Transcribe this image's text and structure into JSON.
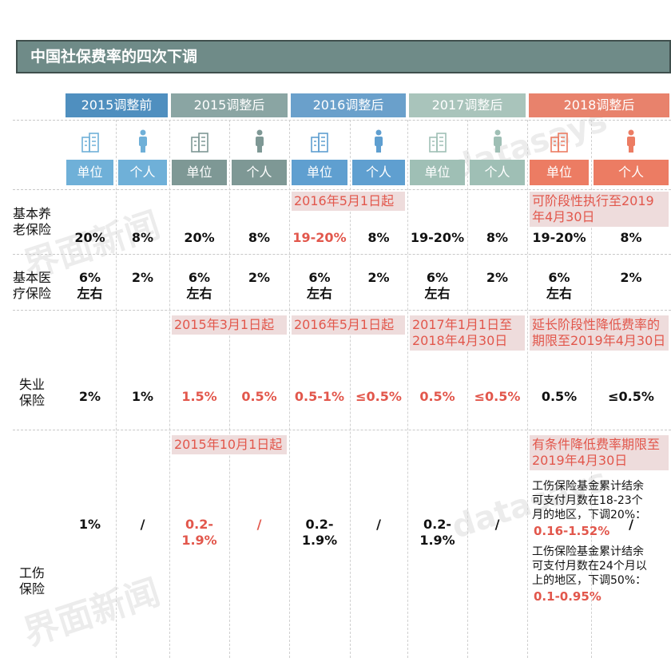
{
  "title": "中国社保费率的四次下调",
  "periods": [
    {
      "label": "2015调整前",
      "color": "#4f8fbf",
      "sub_color": "#6fb0d8"
    },
    {
      "label": "2015调整后",
      "color": "#8aa5a3",
      "sub_color": "#7e9895"
    },
    {
      "label": "2016调整后",
      "color": "#6aa0cb",
      "sub_color": "#5f9fd0"
    },
    {
      "label": "2017调整后",
      "color": "#a9c4bb",
      "sub_color": "#9fbfb5"
    },
    {
      "label": "2018调整后",
      "color": "#e8826c",
      "sub_color": "#ec7c63"
    }
  ],
  "subheaders": [
    "单位",
    "个人",
    "单位",
    "个人",
    "单位",
    "个人",
    "单位",
    "个人",
    "单位",
    "个人"
  ],
  "rows": [
    {
      "label": "基本养老保险",
      "notes": [
        null,
        null,
        "2016年5月1日起",
        null,
        "可阶段性执行至2019年4月30日"
      ],
      "cells": [
        "20%",
        "8%",
        "20%",
        "8%",
        {
          "text": "19-20%",
          "red": true
        },
        "8%",
        "19-20%",
        "8%",
        "19-20%",
        "8%"
      ]
    },
    {
      "label": "基本医疗保险",
      "notes": [
        null,
        null,
        null,
        null,
        null
      ],
      "cells": [
        "6%左右",
        "2%",
        "6%左右",
        "2%",
        "6%左右",
        "2%",
        "6%左右",
        "2%",
        "6%左右",
        "2%"
      ]
    },
    {
      "label": "失业保险",
      "notes": [
        null,
        "2015年3月1日起",
        "2016年5月1日起",
        "2017年1月1日至2018年4月30日",
        "延长阶段性降低费率的期限至2019年4月30日"
      ],
      "cells": [
        "2%",
        "1%",
        {
          "text": "1.5%",
          "red": true
        },
        {
          "text": "0.5%",
          "red": true
        },
        {
          "text": "0.5-1%",
          "red": true
        },
        {
          "text": "≤0.5%",
          "red": true
        },
        {
          "text": "0.5%",
          "red": true
        },
        {
          "text": "≤0.5%",
          "red": true
        },
        "0.5%",
        "≤0.5%"
      ]
    },
    {
      "label": "工伤保险",
      "notes": [
        null,
        "2015年10月1日起",
        null,
        null,
        "有条件降低费率期限至2019年4月30日"
      ],
      "cells": [
        "1%",
        "/",
        {
          "text": "0.2-1.9%",
          "red": true
        },
        {
          "text": "/",
          "red": true
        },
        "0.2-1.9%",
        "/",
        "0.2-1.9%",
        "/",
        [
          {
            "text": "工伤保险基金累计结余可支付月数在18-23个月的地区，下调20%：",
            "value": "0.16-1.52%"
          },
          {
            "text": "工伤保险基金累计结余可支付月数在24个月以上的地区，下调50%：",
            "value": "0.1-0.95%"
          }
        ],
        "/"
      ]
    }
  ],
  "watermarks": [
    "界面新闻",
    "datasays"
  ]
}
